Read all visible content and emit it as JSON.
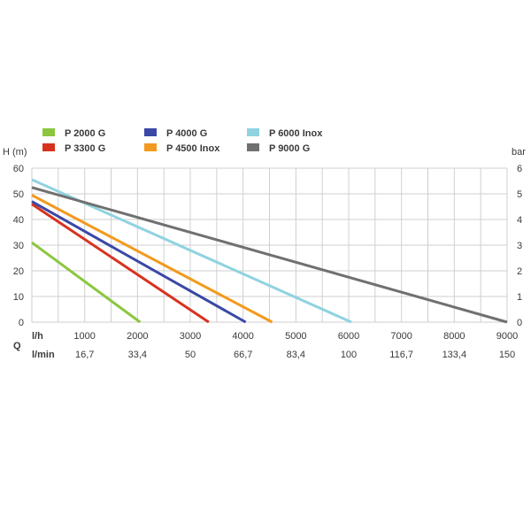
{
  "chart_data": {
    "type": "line",
    "y_left_label": "H (m)",
    "y_right_label": "bar",
    "x_row1_label": "l/h",
    "x_row2_label": "l/min",
    "q_label": "Q",
    "y_ticks_left": [
      "0",
      "10",
      "20",
      "30",
      "40",
      "50",
      "60"
    ],
    "y_ticks_right": [
      "0",
      "1",
      "2",
      "3",
      "4",
      "5",
      "6"
    ],
    "x_ticks_lh": [
      "1000",
      "2000",
      "3000",
      "4000",
      "5000",
      "6000",
      "7000",
      "8000",
      "9000"
    ],
    "x_ticks_lmin": [
      "16,7",
      "33,4",
      "50",
      "66,7",
      "83,4",
      "100",
      "116,7",
      "133,4",
      "150"
    ],
    "xlim": [
      0,
      9000
    ],
    "ylim": [
      0,
      60
    ],
    "grid": true,
    "legend_position": "top",
    "series": [
      {
        "name": "P 2000 G",
        "color": "#8cc63f",
        "points": [
          [
            0,
            31
          ],
          [
            2050,
            0
          ]
        ]
      },
      {
        "name": "P 3300 G",
        "color": "#d7321e",
        "points": [
          [
            0,
            46
          ],
          [
            3350,
            0
          ]
        ]
      },
      {
        "name": "P 4000 G",
        "color": "#3a47a6",
        "points": [
          [
            0,
            47
          ],
          [
            4050,
            0
          ]
        ]
      },
      {
        "name": "P 4500 Inox",
        "color": "#f29a1f",
        "points": [
          [
            0,
            49.5
          ],
          [
            4550,
            0
          ]
        ]
      },
      {
        "name": "P 6000 Inox",
        "color": "#8fd3e0",
        "points": [
          [
            0,
            55.5
          ],
          [
            6050,
            0
          ]
        ]
      },
      {
        "name": "P 9000 G",
        "color": "#707070",
        "points": [
          [
            0,
            52.5
          ],
          [
            9000,
            0
          ]
        ]
      }
    ]
  }
}
